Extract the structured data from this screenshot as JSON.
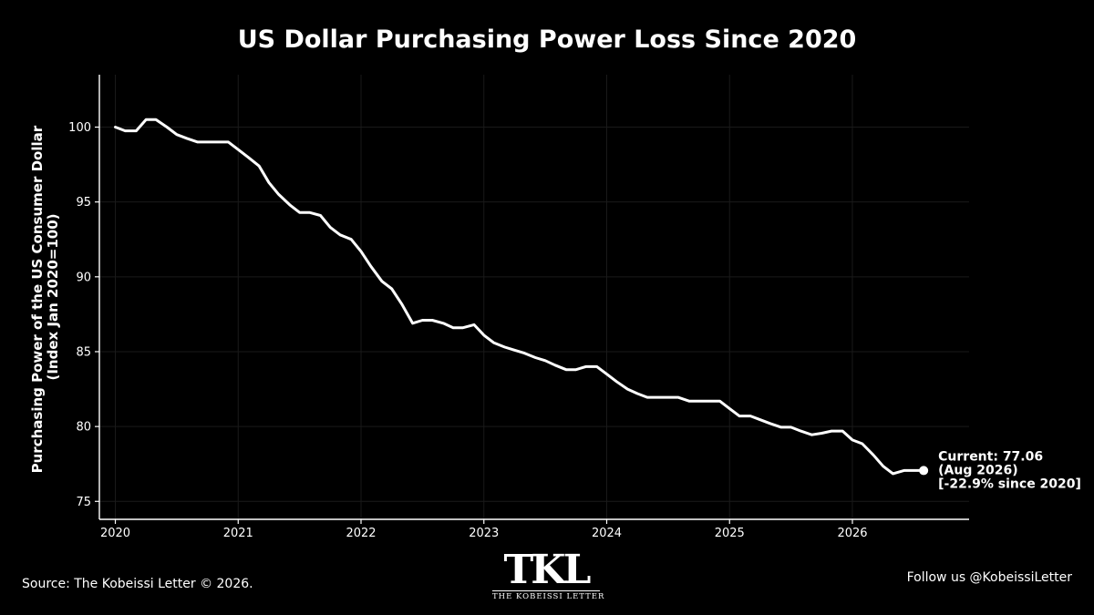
{
  "chart_data": {
    "type": "line",
    "title": "US Dollar Purchasing Power Loss Since 2020",
    "ylabel": [
      "Purchasing Power of the US Consumer Dollar",
      "(Index Jan 2020=100)"
    ],
    "xlabel": "",
    "ylim": [
      73.8,
      103.5
    ],
    "xlim": [
      2019.87,
      2026.95
    ],
    "yticks": [
      75,
      80,
      85,
      90,
      95,
      100
    ],
    "xticks": [
      2020,
      2021,
      2022,
      2023,
      2024,
      2025,
      2026
    ],
    "grid": true,
    "series": [
      {
        "x": [
          2020.0,
          2020.08,
          2020.17,
          2020.25,
          2020.33,
          2020.42,
          2020.5,
          2020.58,
          2020.67,
          2020.75,
          2020.83,
          2020.92,
          2021.0,
          2021.08,
          2021.17,
          2021.25,
          2021.33,
          2021.42,
          2021.5,
          2021.58,
          2021.67,
          2021.75,
          2021.83,
          2021.92,
          2022.0,
          2022.08,
          2022.17,
          2022.25,
          2022.33,
          2022.42,
          2022.5,
          2022.58,
          2022.67,
          2022.75,
          2022.83,
          2022.92,
          2023.0,
          2023.08,
          2023.17,
          2023.25,
          2023.33,
          2023.42,
          2023.5,
          2023.58,
          2023.67,
          2023.75,
          2023.83,
          2023.92,
          2024.0,
          2024.08,
          2024.17,
          2024.25,
          2024.33,
          2024.42,
          2024.5,
          2024.58,
          2024.67,
          2024.75,
          2024.83,
          2024.92,
          2025.0,
          2025.08,
          2025.17,
          2025.25,
          2025.33,
          2025.42,
          2025.5,
          2025.58,
          2025.67,
          2025.75,
          2025.83,
          2025.92,
          2026.0,
          2026.08,
          2026.17,
          2026.25,
          2026.33,
          2026.42,
          2026.5,
          2026.58
        ],
        "y": [
          100.0,
          99.75,
          99.75,
          100.5,
          100.5,
          100.0,
          99.5,
          99.25,
          99.0,
          99.0,
          99.0,
          99.0,
          98.5,
          98.0,
          97.4,
          96.3,
          95.5,
          94.8,
          94.3,
          94.3,
          94.1,
          93.3,
          92.8,
          92.5,
          91.7,
          90.7,
          89.7,
          89.2,
          88.2,
          86.9,
          87.1,
          87.1,
          86.9,
          86.6,
          86.6,
          86.8,
          86.1,
          85.6,
          85.3,
          85.1,
          84.9,
          84.6,
          84.4,
          84.1,
          83.8,
          83.8,
          84.0,
          84.0,
          83.5,
          83.0,
          82.5,
          82.2,
          81.95,
          81.95,
          81.95,
          81.95,
          81.7,
          81.7,
          81.7,
          81.7,
          81.2,
          80.7,
          80.7,
          80.45,
          80.2,
          79.95,
          79.95,
          79.7,
          79.45,
          79.55,
          79.7,
          79.7,
          79.1,
          78.85,
          78.1,
          77.35,
          76.85,
          77.06,
          77.06,
          77.06
        ]
      }
    ],
    "annotation": {
      "lines": [
        "Current: 77.06",
        "(Aug 2026)",
        "[-22.9% since 2020]"
      ],
      "x": 2026.58,
      "y": 77.06
    },
    "colors": {
      "background": "#000000",
      "line": "#ffffff",
      "grid": "#1a1a1a"
    }
  },
  "footer": {
    "source": "Source: The Kobeissi Letter © 2026.",
    "follow": "Follow us @KobeissiLetter",
    "logo_mark": "TKL",
    "logo_text": "THE KOBEISSI LETTER"
  }
}
